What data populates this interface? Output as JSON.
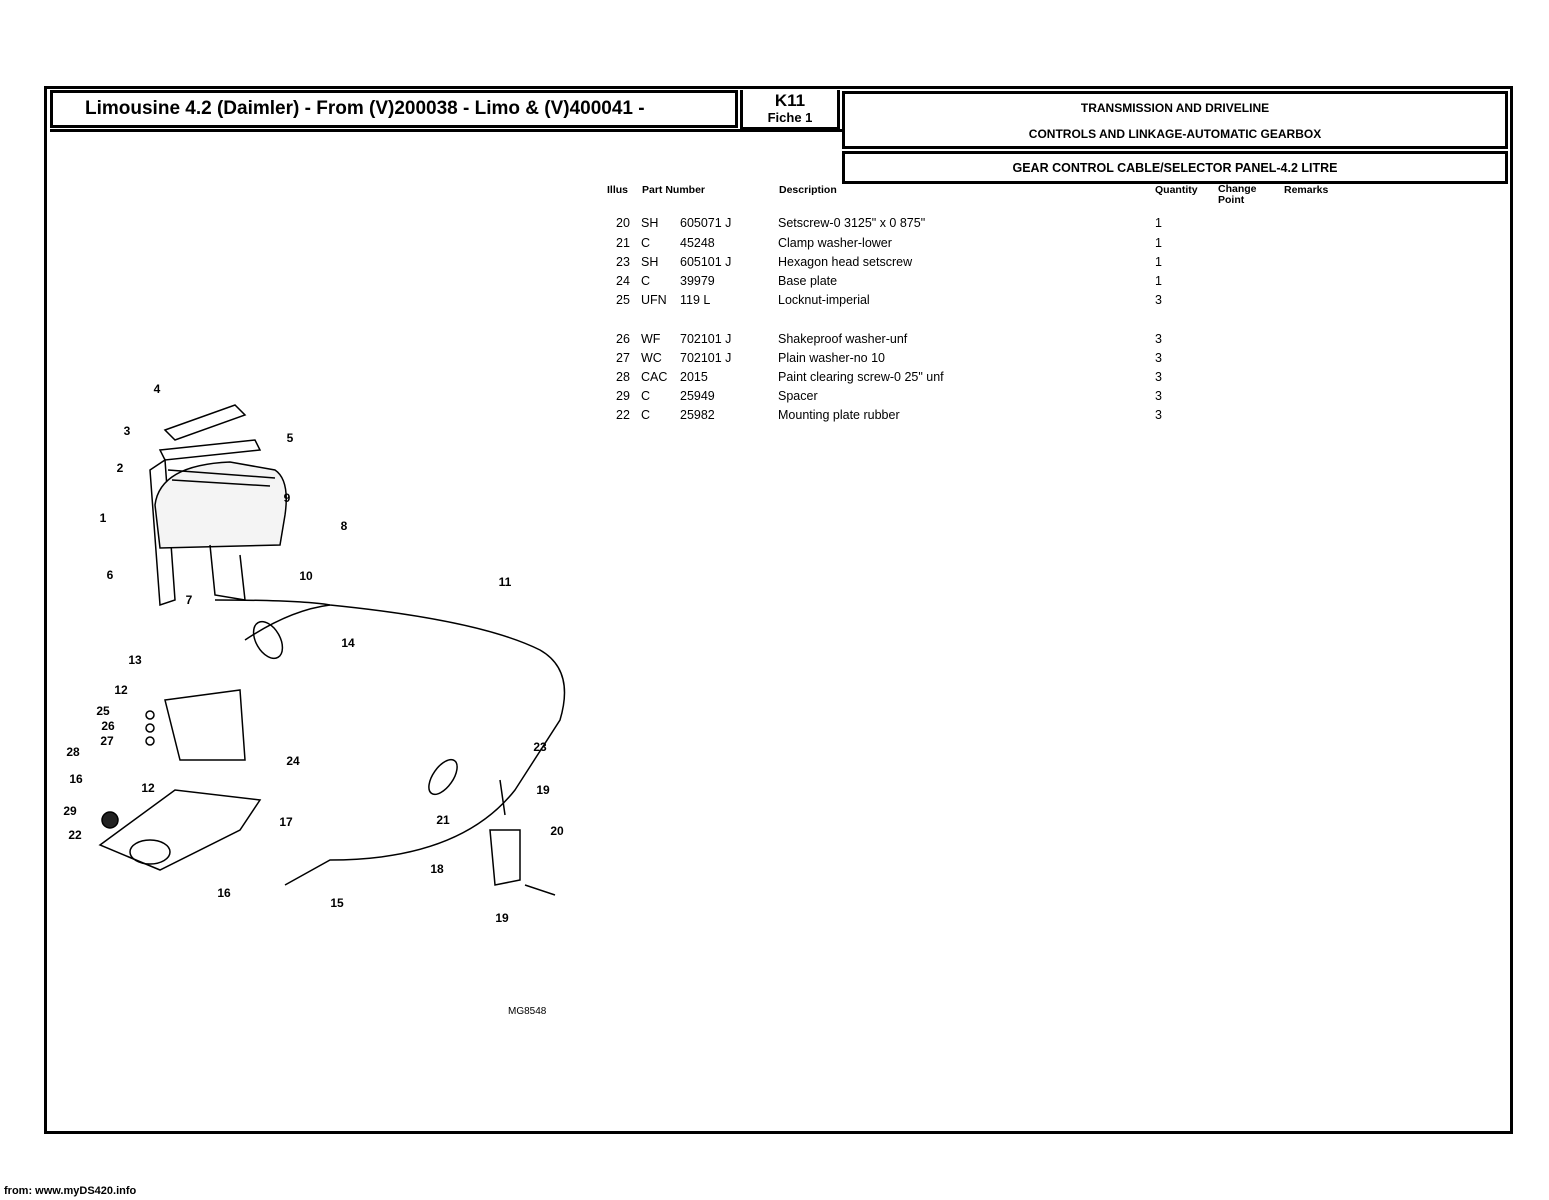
{
  "header": {
    "title": "Limousine 4.2 (Daimler) - From (V)200038 - Limo & (V)400041 -",
    "code": "K11",
    "fiche": "Fiche 1",
    "section": "TRANSMISSION AND DRIVELINE",
    "subsection": "CONTROLS AND LINKAGE-AUTOMATIC GEARBOX",
    "group": "GEAR CONTROL CABLE/SELECTOR PANEL-4.2 LITRE"
  },
  "table": {
    "columns": {
      "illus": "Illus",
      "part": "Part Number",
      "description": "Description",
      "quantity": "Quantity",
      "change": "Change Point",
      "remarks": "Remarks"
    },
    "rows": [
      {
        "illus": "20",
        "prefix": "SH",
        "number": "605071 J",
        "description": "Setscrew-0 3125\" x 0 875\"",
        "quantity": "1"
      },
      {
        "illus": "21",
        "prefix": "C",
        "number": "45248",
        "description": "Clamp washer-lower",
        "quantity": "1"
      },
      {
        "illus": "23",
        "prefix": "SH",
        "number": "605101 J",
        "description": "Hexagon head setscrew",
        "quantity": "1"
      },
      {
        "illus": "24",
        "prefix": "C",
        "number": "39979",
        "description": "Base plate",
        "quantity": "1"
      },
      {
        "illus": "25",
        "prefix": "UFN",
        "number": "119 L",
        "description": "Locknut-imperial",
        "quantity": "3"
      },
      {
        "illus": "26",
        "prefix": "WF",
        "number": "702101 J",
        "description": "Shakeproof washer-unf",
        "quantity": "3"
      },
      {
        "illus": "27",
        "prefix": "WC",
        "number": "702101 J",
        "description": "Plain washer-no 10",
        "quantity": "3"
      },
      {
        "illus": "28",
        "prefix": "CAC",
        "number": "2015",
        "description": "Paint clearing screw-0 25\" unf",
        "quantity": "3"
      },
      {
        "illus": "29",
        "prefix": "C",
        "number": "25949",
        "description": "Spacer",
        "quantity": "3"
      },
      {
        "illus": "22",
        "prefix": "C",
        "number": "25982",
        "description": "Mounting plate rubber",
        "quantity": "3"
      }
    ]
  },
  "diagram": {
    "callouts": [
      "4",
      "3",
      "5",
      "2",
      "9",
      "1",
      "8",
      "10",
      "6",
      "7",
      "11",
      "14",
      "13",
      "12",
      "25",
      "26",
      "27",
      "28",
      "24",
      "23",
      "16",
      "12",
      "19",
      "29",
      "21",
      "17",
      "20",
      "22",
      "18",
      "16",
      "15",
      "19"
    ],
    "drawing_number": "MG8548"
  },
  "footer": "from: www.myDS420.info"
}
